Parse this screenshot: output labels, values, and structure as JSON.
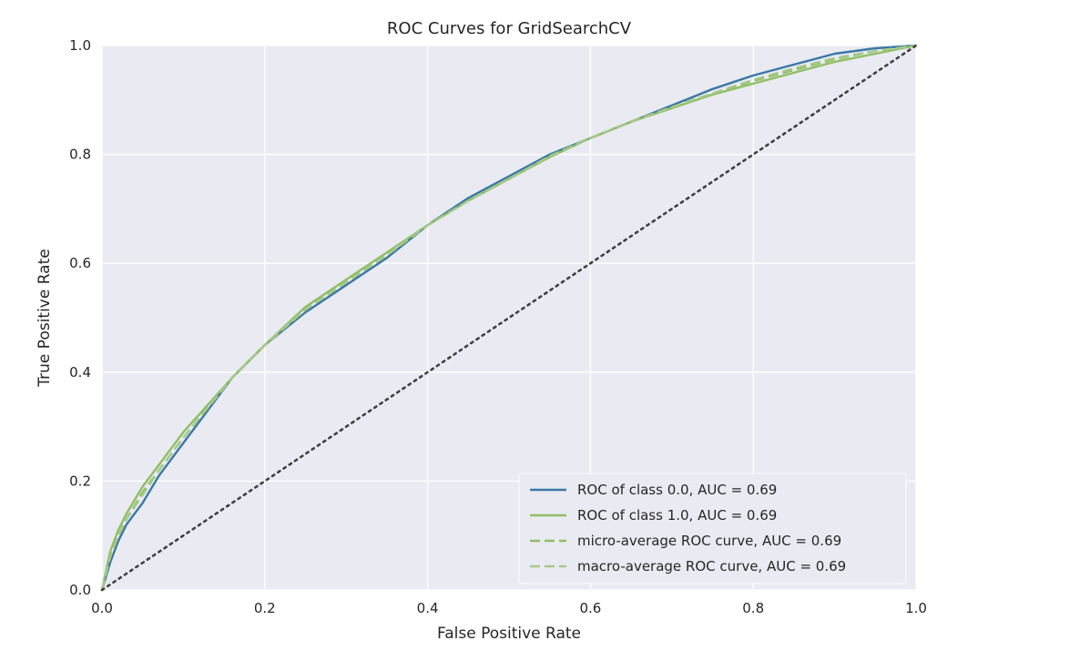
{
  "chart_data": {
    "type": "line",
    "title": "ROC Curves for GridSearchCV",
    "xlabel": "False Positive Rate",
    "ylabel": "True Positive Rate",
    "xlim": [
      0.0,
      1.0
    ],
    "ylim": [
      0.0,
      1.0
    ],
    "xticks": [
      "0.0",
      "0.2",
      "0.4",
      "0.6",
      "0.8",
      "1.0"
    ],
    "yticks": [
      "0.0",
      "0.2",
      "0.4",
      "0.6",
      "0.8",
      "1.0"
    ],
    "grid": true,
    "legend_position": "bottom-right",
    "series": [
      {
        "name": "ROC of class 0.0, AUC = 0.69",
        "color": "#3a78a6",
        "style": "solid",
        "x": [
          0.0,
          0.01,
          0.02,
          0.03,
          0.05,
          0.07,
          0.1,
          0.13,
          0.16,
          0.2,
          0.25,
          0.3,
          0.35,
          0.4,
          0.45,
          0.5,
          0.55,
          0.6,
          0.65,
          0.7,
          0.75,
          0.8,
          0.85,
          0.9,
          0.95,
          1.0
        ],
        "y": [
          0.0,
          0.05,
          0.09,
          0.12,
          0.16,
          0.21,
          0.27,
          0.33,
          0.39,
          0.45,
          0.51,
          0.56,
          0.61,
          0.67,
          0.72,
          0.76,
          0.8,
          0.83,
          0.86,
          0.89,
          0.92,
          0.945,
          0.965,
          0.985,
          0.995,
          1.0
        ]
      },
      {
        "name": "ROC of class 1.0, AUC = 0.69",
        "color": "#8fbf62",
        "style": "solid",
        "x": [
          0.0,
          0.01,
          0.02,
          0.03,
          0.05,
          0.07,
          0.1,
          0.13,
          0.16,
          0.2,
          0.25,
          0.3,
          0.35,
          0.4,
          0.45,
          0.5,
          0.55,
          0.6,
          0.65,
          0.7,
          0.75,
          0.8,
          0.85,
          0.9,
          0.95,
          1.0
        ],
        "y": [
          0.0,
          0.07,
          0.11,
          0.14,
          0.19,
          0.23,
          0.29,
          0.34,
          0.39,
          0.45,
          0.52,
          0.57,
          0.62,
          0.67,
          0.715,
          0.755,
          0.795,
          0.83,
          0.86,
          0.885,
          0.91,
          0.93,
          0.95,
          0.97,
          0.985,
          1.0
        ]
      },
      {
        "name": "micro-average ROC curve, AUC = 0.69",
        "color": "#8fbf62",
        "style": "dashed",
        "x": [
          0.0,
          0.01,
          0.02,
          0.03,
          0.05,
          0.07,
          0.1,
          0.13,
          0.16,
          0.2,
          0.25,
          0.3,
          0.35,
          0.4,
          0.45,
          0.5,
          0.55,
          0.6,
          0.65,
          0.7,
          0.75,
          0.8,
          0.85,
          0.9,
          0.95,
          1.0
        ],
        "y": [
          0.0,
          0.06,
          0.1,
          0.13,
          0.18,
          0.22,
          0.28,
          0.335,
          0.39,
          0.45,
          0.515,
          0.565,
          0.615,
          0.67,
          0.715,
          0.755,
          0.797,
          0.83,
          0.86,
          0.887,
          0.912,
          0.935,
          0.955,
          0.975,
          0.99,
          1.0
        ]
      },
      {
        "name": "macro-average ROC curve, AUC = 0.69",
        "color": "#a5c98a",
        "style": "dashed",
        "x": [
          0.0,
          0.01,
          0.02,
          0.03,
          0.05,
          0.07,
          0.1,
          0.13,
          0.16,
          0.2,
          0.25,
          0.3,
          0.35,
          0.4,
          0.45,
          0.5,
          0.55,
          0.6,
          0.65,
          0.7,
          0.75,
          0.8,
          0.85,
          0.9,
          0.95,
          1.0
        ],
        "y": [
          0.0,
          0.06,
          0.1,
          0.13,
          0.175,
          0.22,
          0.28,
          0.335,
          0.39,
          0.45,
          0.515,
          0.565,
          0.615,
          0.67,
          0.715,
          0.755,
          0.797,
          0.83,
          0.86,
          0.887,
          0.912,
          0.937,
          0.958,
          0.977,
          0.99,
          1.0
        ]
      },
      {
        "name": "",
        "color": "#404040",
        "style": "dotted",
        "x": [
          0.0,
          1.0
        ],
        "y": [
          0.0,
          1.0
        ]
      }
    ]
  }
}
